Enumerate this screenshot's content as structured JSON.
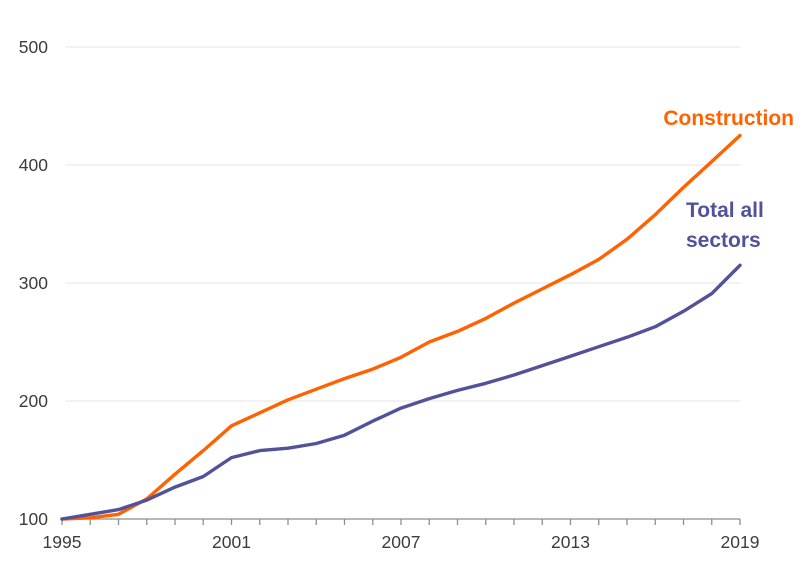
{
  "chart_data": {
    "type": "line",
    "title": "",
    "xlabel": "",
    "ylabel": "",
    "x": [
      1995,
      1996,
      1997,
      1998,
      1999,
      2000,
      2001,
      2002,
      2003,
      2004,
      2005,
      2006,
      2007,
      2008,
      2009,
      2010,
      2011,
      2012,
      2013,
      2014,
      2015,
      2016,
      2017,
      2018,
      2019
    ],
    "series": [
      {
        "name": "Construction",
        "color": "#FF6200",
        "values": [
          100,
          101,
          104,
          117,
          138,
          158,
          179,
          190,
          201,
          210,
          219,
          227,
          237,
          250,
          259,
          270,
          283,
          295,
          307,
          320,
          337,
          358,
          381,
          403,
          425
        ]
      },
      {
        "name": "Total all sectors",
        "color": "#525199",
        "values": [
          100,
          104,
          108,
          116,
          127,
          136,
          152,
          158,
          160,
          164,
          171,
          183,
          194,
          202,
          209,
          215,
          222,
          230,
          238,
          246,
          254,
          263,
          276,
          291,
          315
        ]
      }
    ],
    "xlim": [
      1995,
      2019
    ],
    "ylim": [
      100,
      500
    ],
    "yticks": [
      100,
      200,
      300,
      400,
      500
    ],
    "xtick_labels": [
      1995,
      2001,
      2007,
      2013,
      2019
    ],
    "minor_xticks_every": 1,
    "grid": "horizontal",
    "legend_position": "inline-right"
  },
  "labels": {
    "construction": "Construction",
    "total_all_sectors": "Total all\nsectors"
  },
  "colors": {
    "construction_line": "#FF6200",
    "total_line": "#525199",
    "gridline": "#E9E9E9",
    "axis": "#8E8E8E",
    "tick_text": "#3C3C3C",
    "background": "#FFFFFF"
  }
}
